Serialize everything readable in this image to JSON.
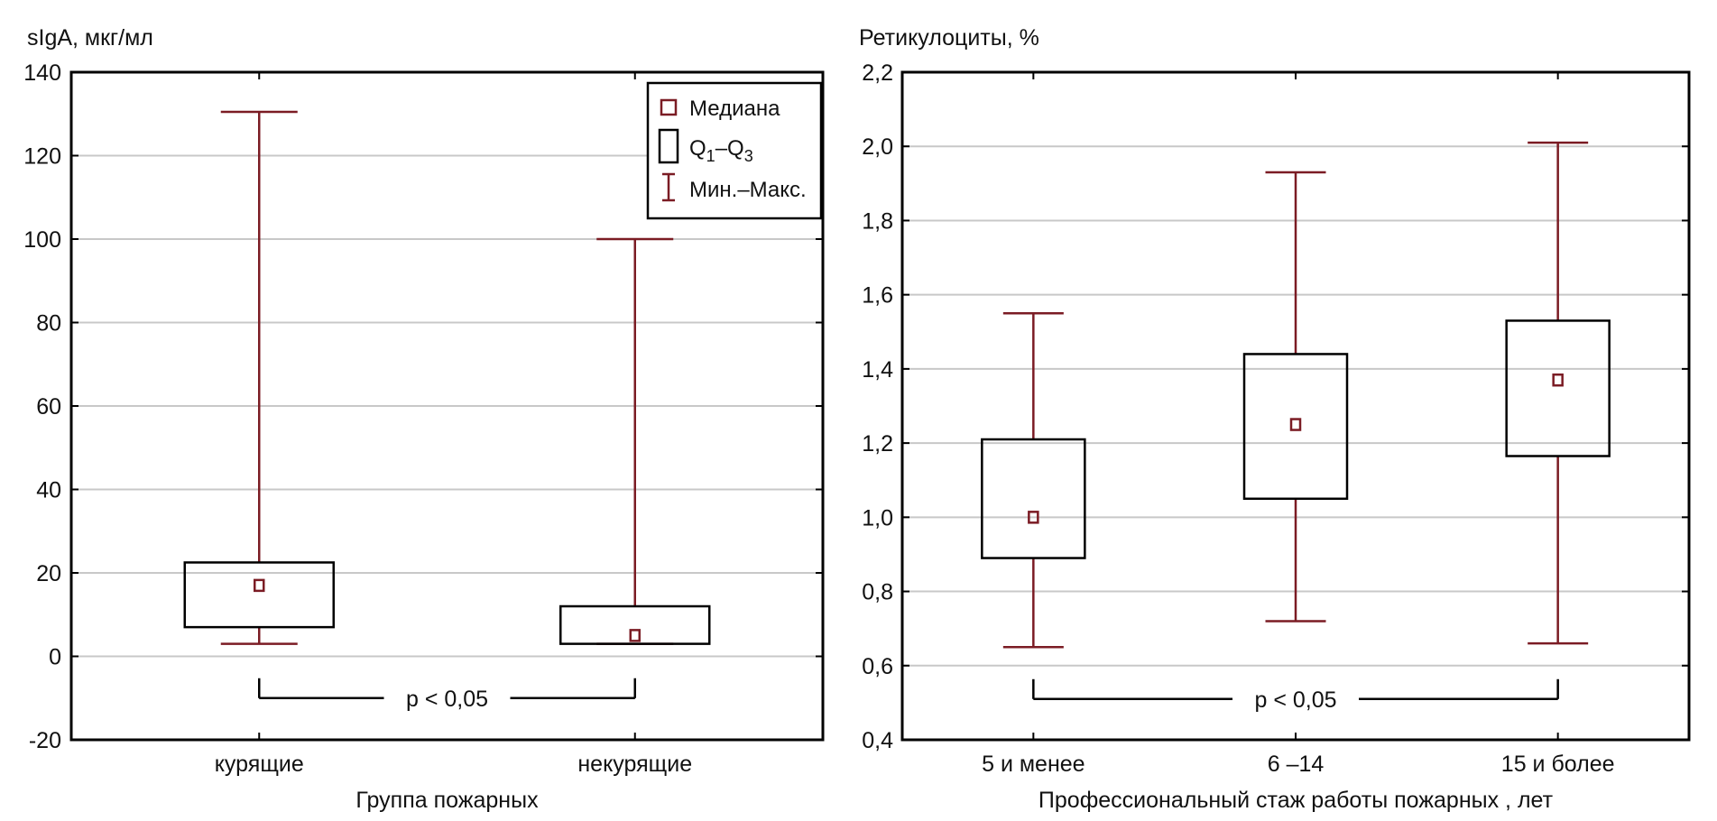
{
  "colors": {
    "box": "#000000",
    "whisker": "#7b1c24",
    "median": "#7b1c24",
    "grid": "#c8c8c8"
  },
  "legend": {
    "items": [
      {
        "icon": "median-square-icon",
        "label": "Медиана"
      },
      {
        "icon": "box-icon",
        "label": "Q",
        "sub1": "1",
        "dash": "–",
        "label2": "Q",
        "sub2": "3"
      },
      {
        "icon": "whisker-icon",
        "label": "Мин.–Макс."
      }
    ]
  },
  "chart_data": [
    {
      "type": "boxplot",
      "ylabel": "sIgA, мкг/мл",
      "xlabel": "Группа пожарных",
      "ylim": [
        -20,
        140
      ],
      "yticks": [
        "-20",
        "0",
        "20",
        "40",
        "60",
        "80",
        "100",
        "120",
        "140"
      ],
      "ytick_values": [
        -20,
        0,
        20,
        40,
        60,
        80,
        100,
        120,
        140
      ],
      "grid": true,
      "categories": [
        "курящие",
        "некурящие"
      ],
      "boxes": [
        {
          "min": 3,
          "q1": 7,
          "median": 17,
          "q3": 22.5,
          "max": 130.5
        },
        {
          "min": 3,
          "q1": 3,
          "median": 5,
          "q3": 12,
          "max": 100
        }
      ],
      "annotation": {
        "text": "p < 0,05",
        "from": 0,
        "to": 1,
        "y": -10
      }
    },
    {
      "type": "boxplot",
      "ylabel": "Ретикулоциты, %",
      "xlabel": "Профессиональный стаж работы пожарных , лет",
      "ylim": [
        0.4,
        2.2
      ],
      "yticks": [
        "0,4",
        "0,6",
        "0,8",
        "1,0",
        "1,2",
        "1,4",
        "1,6",
        "1,8",
        "2,0",
        "2,2"
      ],
      "ytick_values": [
        0.4,
        0.6,
        0.8,
        1.0,
        1.2,
        1.4,
        1.6,
        1.8,
        2.0,
        2.2
      ],
      "grid": true,
      "categories": [
        "5 и менее",
        "6 –14",
        "15 и более"
      ],
      "boxes": [
        {
          "min": 0.65,
          "q1": 0.89,
          "median": 1.0,
          "q3": 1.21,
          "max": 1.55
        },
        {
          "min": 0.72,
          "q1": 1.05,
          "median": 1.25,
          "q3": 1.44,
          "max": 1.93
        },
        {
          "min": 0.66,
          "q1": 1.165,
          "median": 1.37,
          "q3": 1.53,
          "max": 2.01
        }
      ],
      "annotation": {
        "text": "p < 0,05",
        "from": 0,
        "to": 2,
        "y": 0.51
      }
    }
  ]
}
